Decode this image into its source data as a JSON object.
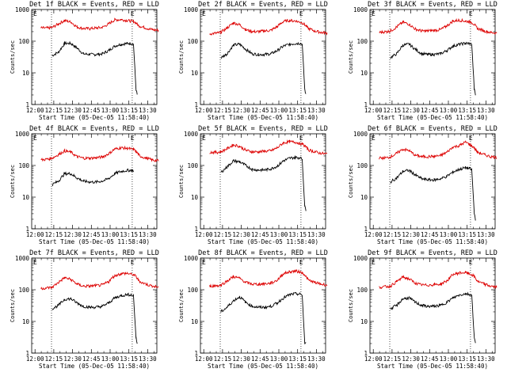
{
  "chart_data": [
    {
      "type": "line",
      "title": "Det 1f BLACK = Events, RED = LLD",
      "xlabel": "Start Time (05-Dec-05 11:58:40)",
      "ylabel": "Counts/sec",
      "y_scale": "log",
      "ylim": [
        1,
        1000
      ],
      "x_ticks": [
        "12:00",
        "12:15",
        "12:30",
        "12:45",
        "13:00",
        "13:15",
        "13:30"
      ],
      "y_ticks": [
        "1",
        "10",
        "100",
        "1000"
      ],
      "markers": [
        "E",
        "E"
      ],
      "x": [
        0,
        6,
        12,
        15,
        20,
        25,
        30,
        35,
        40,
        45,
        50,
        55,
        60,
        65,
        70,
        75,
        78,
        80,
        82,
        83,
        84,
        85,
        90,
        95,
        100
      ],
      "series": [
        {
          "name": "Events",
          "color": "#000000",
          "values": [
            null,
            null,
            null,
            35,
            45,
            85,
            85,
            60,
            40,
            38,
            38,
            40,
            50,
            70,
            80,
            85,
            85,
            80,
            3,
            2,
            null,
            null,
            null,
            null,
            null
          ]
        },
        {
          "name": "LLD",
          "color": "#dd0000",
          "values": [
            null,
            260,
            260,
            270,
            350,
            450,
            400,
            280,
            250,
            250,
            260,
            270,
            350,
            470,
            480,
            450,
            430,
            420,
            380,
            350,
            320,
            300,
            260,
            230,
            220
          ]
        }
      ]
    },
    {
      "type": "line",
      "title": "Det 2f BLACK = Events, RED = LLD",
      "xlabel": "Start Time (05-Dec-05 11:58:40)",
      "ylabel": "Counts/sec",
      "y_scale": "log",
      "ylim": [
        1,
        1000
      ],
      "x_ticks": [
        "12:00",
        "12:15",
        "12:30",
        "12:45",
        "13:00",
        "13:15",
        "13:30"
      ],
      "y_ticks": [
        "1",
        "10",
        "100",
        "1000"
      ],
      "markers": [
        "E",
        "E"
      ],
      "x": [
        0,
        6,
        12,
        15,
        20,
        25,
        30,
        35,
        40,
        45,
        50,
        55,
        60,
        65,
        70,
        75,
        78,
        80,
        82,
        83,
        84,
        85,
        90,
        95,
        100
      ],
      "series": [
        {
          "name": "Events",
          "color": "#000000",
          "values": [
            null,
            null,
            null,
            30,
            40,
            75,
            80,
            55,
            40,
            38,
            38,
            40,
            50,
            70,
            80,
            85,
            85,
            80,
            3,
            2,
            null,
            null,
            null,
            null,
            null
          ]
        },
        {
          "name": "LLD",
          "color": "#dd0000",
          "values": [
            null,
            170,
            180,
            190,
            260,
            380,
            330,
            230,
            200,
            200,
            210,
            220,
            290,
            420,
            450,
            430,
            400,
            380,
            330,
            300,
            270,
            250,
            210,
            190,
            180
          ]
        }
      ]
    },
    {
      "type": "line",
      "title": "Det 3f BLACK = Events, RED = LLD",
      "xlabel": "Start Time (05-Dec-05 11:58:40)",
      "ylabel": "Counts/sec",
      "y_scale": "log",
      "ylim": [
        1,
        1000
      ],
      "x_ticks": [
        "12:00",
        "12:15",
        "12:30",
        "12:45",
        "13:00",
        "13:15",
        "13:30"
      ],
      "y_ticks": [
        "1",
        "10",
        "100",
        "1000"
      ],
      "markers": [
        "E",
        "E"
      ],
      "x": [
        0,
        6,
        12,
        15,
        20,
        25,
        30,
        35,
        40,
        45,
        50,
        55,
        60,
        65,
        70,
        75,
        78,
        80,
        82,
        83,
        84,
        85,
        90,
        95,
        100
      ],
      "series": [
        {
          "name": "Events",
          "color": "#000000",
          "values": [
            null,
            null,
            null,
            30,
            40,
            75,
            80,
            55,
            40,
            38,
            38,
            40,
            50,
            70,
            80,
            85,
            85,
            80,
            3,
            2,
            null,
            null,
            null,
            null,
            null
          ]
        },
        {
          "name": "LLD",
          "color": "#dd0000",
          "values": [
            null,
            190,
            200,
            210,
            280,
            400,
            340,
            240,
            210,
            210,
            220,
            230,
            300,
            430,
            460,
            430,
            410,
            390,
            340,
            300,
            270,
            250,
            210,
            190,
            180
          ]
        }
      ]
    },
    {
      "type": "line",
      "title": "Det 4f BLACK = Events, RED = LLD",
      "xlabel": "Start Time (05-Dec-05 11:58:40)",
      "ylabel": "Counts/sec",
      "y_scale": "log",
      "ylim": [
        1,
        1000
      ],
      "x_ticks": [
        "12:00",
        "12:15",
        "12:30",
        "12:45",
        "13:00",
        "13:15",
        "13:30"
      ],
      "y_ticks": [
        "1",
        "10",
        "100",
        "1000"
      ],
      "markers": [
        "E",
        "E"
      ],
      "x": [
        0,
        6,
        12,
        15,
        20,
        25,
        30,
        35,
        40,
        45,
        50,
        55,
        60,
        65,
        70,
        75,
        78,
        80,
        82,
        83,
        84,
        85,
        90,
        95,
        100
      ],
      "series": [
        {
          "name": "Events",
          "color": "#000000",
          "values": [
            null,
            null,
            null,
            25,
            32,
            55,
            55,
            40,
            32,
            30,
            30,
            32,
            38,
            55,
            65,
            70,
            70,
            68,
            null,
            null,
            null,
            null,
            null,
            null,
            null
          ]
        },
        {
          "name": "LLD",
          "color": "#dd0000",
          "values": [
            null,
            150,
            160,
            170,
            220,
            290,
            260,
            190,
            170,
            170,
            175,
            185,
            230,
            330,
            360,
            350,
            330,
            320,
            280,
            250,
            220,
            200,
            170,
            150,
            140
          ]
        }
      ]
    },
    {
      "type": "line",
      "title": "Det 5f BLACK = Events, RED = LLD",
      "xlabel": "Start Time (05-Dec-05 11:58:40)",
      "ylabel": "Counts/sec",
      "y_scale": "log",
      "ylim": [
        1,
        1000
      ],
      "x_ticks": [
        "12:00",
        "12:15",
        "12:30",
        "12:45",
        "13:00",
        "13:15",
        "13:30"
      ],
      "y_ticks": [
        "1",
        "10",
        "100",
        "1000"
      ],
      "markers": [
        "E",
        "E"
      ],
      "x": [
        0,
        6,
        12,
        15,
        20,
        25,
        30,
        35,
        40,
        45,
        50,
        55,
        60,
        65,
        70,
        75,
        78,
        80,
        82,
        83,
        84,
        85,
        90,
        95,
        100
      ],
      "series": [
        {
          "name": "Events",
          "color": "#000000",
          "values": [
            null,
            null,
            null,
            60,
            90,
            140,
            130,
            100,
            75,
            72,
            72,
            78,
            95,
            140,
            170,
            180,
            175,
            160,
            5,
            4,
            null,
            null,
            null,
            null,
            null
          ]
        },
        {
          "name": "LLD",
          "color": "#dd0000",
          "values": [
            null,
            260,
            260,
            270,
            340,
            450,
            400,
            300,
            270,
            270,
            280,
            290,
            360,
            520,
            560,
            540,
            500,
            470,
            420,
            380,
            340,
            310,
            270,
            240,
            230
          ]
        }
      ]
    },
    {
      "type": "line",
      "title": "Det 6f BLACK = Events, RED = LLD",
      "xlabel": "Start Time (05-Dec-05 11:58:40)",
      "ylabel": "Counts/sec",
      "y_scale": "log",
      "ylim": [
        1,
        1000
      ],
      "x_ticks": [
        "12:00",
        "12:15",
        "12:30",
        "12:45",
        "13:00",
        "13:15",
        "13:30"
      ],
      "y_ticks": [
        "1",
        "10",
        "100",
        "1000"
      ],
      "markers": [
        "E",
        "E"
      ],
      "x": [
        0,
        6,
        12,
        15,
        20,
        25,
        30,
        35,
        40,
        45,
        50,
        55,
        60,
        65,
        70,
        75,
        78,
        80,
        82,
        83,
        84,
        85,
        90,
        95,
        100
      ],
      "series": [
        {
          "name": "Events",
          "color": "#000000",
          "values": [
            null,
            null,
            null,
            30,
            40,
            65,
            70,
            50,
            38,
            35,
            35,
            38,
            45,
            62,
            75,
            85,
            80,
            75,
            3,
            2,
            null,
            null,
            null,
            null,
            null
          ]
        },
        {
          "name": "LLD",
          "color": "#dd0000",
          "values": [
            null,
            170,
            175,
            185,
            240,
            330,
            290,
            210,
            190,
            190,
            195,
            205,
            260,
            380,
            420,
            550,
            470,
            420,
            360,
            320,
            280,
            260,
            220,
            190,
            180
          ]
        }
      ]
    },
    {
      "type": "line",
      "title": "Det 7f BLACK = Events, RED = LLD",
      "xlabel": "Start Time (05-Dec-05 11:58:40)",
      "ylabel": "Counts/sec",
      "y_scale": "log",
      "ylim": [
        1,
        1000
      ],
      "x_ticks": [
        "12:00",
        "12:15",
        "12:30",
        "12:45",
        "13:00",
        "13:15",
        "13:30"
      ],
      "y_ticks": [
        "1",
        "10",
        "100",
        "1000"
      ],
      "markers": [
        "E",
        "E"
      ],
      "x": [
        0,
        6,
        12,
        15,
        20,
        25,
        30,
        35,
        40,
        45,
        50,
        55,
        60,
        65,
        70,
        75,
        78,
        80,
        82,
        83,
        84,
        85,
        90,
        95,
        100
      ],
      "series": [
        {
          "name": "Events",
          "color": "#000000",
          "values": [
            null,
            null,
            null,
            25,
            32,
            50,
            52,
            38,
            30,
            28,
            28,
            30,
            38,
            55,
            65,
            70,
            70,
            65,
            3,
            2,
            null,
            null,
            null,
            null,
            null
          ]
        },
        {
          "name": "LLD",
          "color": "#dd0000",
          "values": [
            null,
            110,
            115,
            120,
            170,
            240,
            210,
            150,
            130,
            130,
            135,
            140,
            180,
            280,
            320,
            330,
            310,
            300,
            260,
            230,
            200,
            180,
            150,
            130,
            120
          ]
        }
      ]
    },
    {
      "type": "line",
      "title": "Det 8f BLACK = Events, RED = LLD",
      "xlabel": "Start Time (05-Dec-05 11:58:40)",
      "ylabel": "Counts/sec",
      "y_scale": "log",
      "ylim": [
        1,
        1000
      ],
      "x_ticks": [
        "12:00",
        "12:15",
        "12:30",
        "12:45",
        "13:00",
        "13:15",
        "13:30"
      ],
      "y_ticks": [
        "1",
        "10",
        "100",
        "1000"
      ],
      "markers": [
        "E",
        "E"
      ],
      "x": [
        0,
        6,
        12,
        15,
        20,
        25,
        30,
        35,
        40,
        45,
        50,
        55,
        60,
        65,
        70,
        75,
        78,
        80,
        82,
        83,
        84,
        85,
        90,
        95,
        100
      ],
      "series": [
        {
          "name": "Events",
          "color": "#000000",
          "values": [
            null,
            null,
            null,
            20,
            28,
            45,
            60,
            40,
            30,
            28,
            28,
            30,
            38,
            55,
            70,
            75,
            72,
            68,
            2,
            2,
            null,
            null,
            null,
            null,
            null
          ]
        },
        {
          "name": "LLD",
          "color": "#dd0000",
          "values": [
            null,
            130,
            135,
            140,
            190,
            260,
            230,
            170,
            150,
            150,
            155,
            160,
            200,
            320,
            370,
            390,
            360,
            340,
            300,
            260,
            230,
            200,
            170,
            150,
            140
          ]
        }
      ]
    },
    {
      "type": "line",
      "title": "Det 9f BLACK = Events, RED = LLD",
      "xlabel": "Start Time (05-Dec-05 11:58:40)",
      "ylabel": "Counts/sec",
      "y_scale": "log",
      "ylim": [
        1,
        1000
      ],
      "x_ticks": [
        "12:00",
        "12:15",
        "12:30",
        "12:45",
        "13:00",
        "13:15",
        "13:30"
      ],
      "y_ticks": [
        "1",
        "10",
        "100",
        "1000"
      ],
      "markers": [
        "E",
        "E"
      ],
      "x": [
        0,
        6,
        12,
        15,
        20,
        25,
        30,
        35,
        40,
        45,
        50,
        55,
        60,
        65,
        70,
        75,
        78,
        80,
        82,
        83,
        84,
        85,
        90,
        95,
        100
      ],
      "series": [
        {
          "name": "Events",
          "color": "#000000",
          "values": [
            null,
            null,
            null,
            25,
            32,
            52,
            55,
            40,
            32,
            30,
            30,
            32,
            40,
            55,
            68,
            75,
            72,
            68,
            3,
            2,
            null,
            null,
            null,
            null,
            null
          ]
        },
        {
          "name": "LLD",
          "color": "#dd0000",
          "values": [
            null,
            120,
            125,
            130,
            180,
            250,
            220,
            160,
            140,
            140,
            145,
            150,
            190,
            300,
            340,
            350,
            320,
            300,
            260,
            230,
            200,
            180,
            150,
            130,
            120
          ]
        }
      ]
    }
  ]
}
